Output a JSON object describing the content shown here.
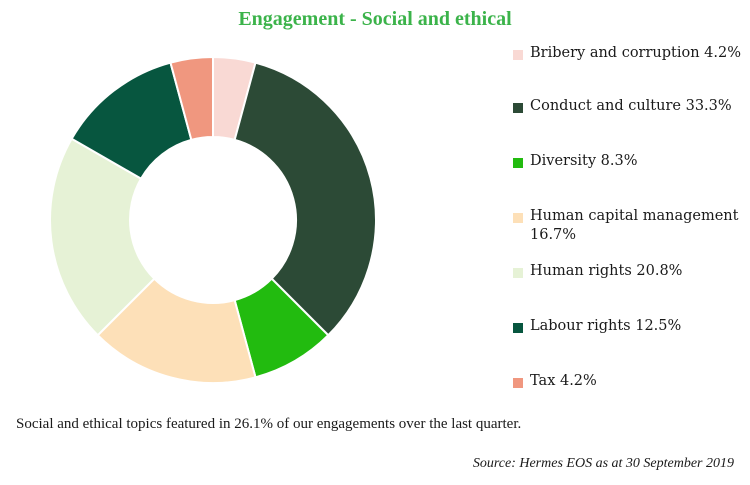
{
  "chart_data": {
    "type": "pie",
    "title": "Engagement - Social and ethical",
    "legend_position": "right",
    "slices": [
      {
        "label": "Bribery and corruption",
        "value": 4.2,
        "display": "Bribery and corruption 4.2%",
        "color": "#f9d9d4"
      },
      {
        "label": "Conduct and culture",
        "value": 33.3,
        "display": "Conduct and culture 33.3%",
        "color": "#2c4a36"
      },
      {
        "label": "Diversity",
        "value": 8.3,
        "display": "Diversity 8.3%",
        "color": "#22bb0f"
      },
      {
        "label": "Human capital management",
        "value": 16.7,
        "display": "Human capital management 16.7%",
        "color": "#fde0b8"
      },
      {
        "label": "Human rights",
        "value": 20.8,
        "display": "Human rights 20.8%",
        "color": "#e6f2d6"
      },
      {
        "label": "Labour rights",
        "value": 12.5,
        "display": "Labour rights 12.5%",
        "color": "#07563f"
      },
      {
        "label": "Tax",
        "value": 4.2,
        "display": "Tax 4.2%",
        "color": "#f0977f"
      }
    ]
  },
  "caption": "Social and ethical topics featured in 26.1% of our engagements  over the last quarter.",
  "source": "Source: Hermes EOS as at 30 September 2019"
}
